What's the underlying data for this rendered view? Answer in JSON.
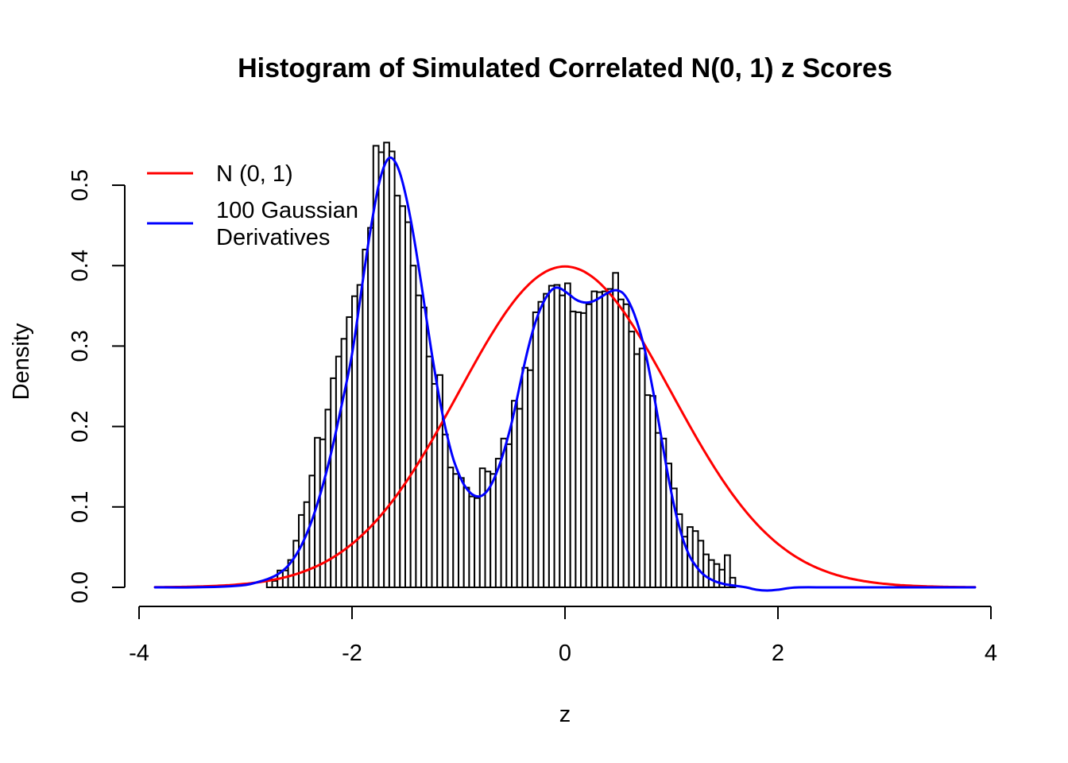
{
  "chart_data": {
    "type": "histogram",
    "title": "Histogram of Simulated Correlated N(0, 1) z Scores",
    "xlabel": "z",
    "ylabel": "Density",
    "xlim": [
      -4,
      4
    ],
    "ylim": [
      0,
      0.55
    ],
    "x_ticks": [
      -4,
      -2,
      0,
      2,
      4
    ],
    "x_tick_labels": [
      "-4",
      "-2",
      "0",
      "2",
      "4"
    ],
    "y_ticks": [
      0.0,
      0.1,
      0.2,
      0.3,
      0.4,
      0.5
    ],
    "y_tick_labels": [
      "0.0",
      "0.1",
      "0.2",
      "0.3",
      "0.4",
      "0.5"
    ],
    "grid": false,
    "background_color": "#FFFFFF",
    "axis_color": "#000000",
    "histogram": {
      "bar_fill": "#FFFFFF",
      "bar_stroke": "#000000",
      "bin_start": -2.8,
      "bin_width": 0.05,
      "densities": [
        0.01,
        0.008,
        0.021,
        0.021,
        0.034,
        0.058,
        0.09,
        0.106,
        0.139,
        0.186,
        0.184,
        0.221,
        0.26,
        0.287,
        0.309,
        0.336,
        0.362,
        0.376,
        0.42,
        0.447,
        0.549,
        0.541,
        0.553,
        0.542,
        0.487,
        0.474,
        0.454,
        0.4,
        0.363,
        0.348,
        0.287,
        0.253,
        0.264,
        0.19,
        0.149,
        0.141,
        0.136,
        0.124,
        0.113,
        0.111,
        0.148,
        0.144,
        0.141,
        0.16,
        0.185,
        0.178,
        0.232,
        0.222,
        0.273,
        0.27,
        0.342,
        0.355,
        0.365,
        0.375,
        0.376,
        0.363,
        0.378,
        0.343,
        0.342,
        0.341,
        0.352,
        0.368,
        0.367,
        0.368,
        0.371,
        0.391,
        0.358,
        0.352,
        0.318,
        0.29,
        0.297,
        0.239,
        0.238,
        0.192,
        0.185,
        0.154,
        0.123,
        0.091,
        0.063,
        0.075,
        0.07,
        0.058,
        0.041,
        0.034,
        0.029,
        0.022,
        0.04,
        0.012
      ]
    },
    "curves": [
      {
        "name": "N (0, 1)",
        "color": "#FF0000",
        "type": "normal_pdf",
        "mean": 0,
        "sd": 1,
        "z_range": [
          -3.85,
          3.85
        ],
        "peak_density": 0.3989
      },
      {
        "name": "100 Gaussian Derivatives",
        "color": "#0000FF",
        "type": "points",
        "points": [
          [
            -3.85,
            0.0
          ],
          [
            -3.5,
            0.0
          ],
          [
            -3.2,
            0.001
          ],
          [
            -3.0,
            0.003
          ],
          [
            -2.9,
            0.006
          ],
          [
            -2.8,
            0.01
          ],
          [
            -2.7,
            0.016
          ],
          [
            -2.6,
            0.027
          ],
          [
            -2.5,
            0.046
          ],
          [
            -2.4,
            0.075
          ],
          [
            -2.3,
            0.115
          ],
          [
            -2.2,
            0.165
          ],
          [
            -2.1,
            0.225
          ],
          [
            -2.0,
            0.29
          ],
          [
            -1.9,
            0.38
          ],
          [
            -1.85,
            0.425
          ],
          [
            -1.8,
            0.465
          ],
          [
            -1.75,
            0.5
          ],
          [
            -1.7,
            0.523
          ],
          [
            -1.65,
            0.534
          ],
          [
            -1.6,
            0.53
          ],
          [
            -1.55,
            0.515
          ],
          [
            -1.5,
            0.49
          ],
          [
            -1.45,
            0.458
          ],
          [
            -1.4,
            0.42
          ],
          [
            -1.35,
            0.378
          ],
          [
            -1.3,
            0.333
          ],
          [
            -1.25,
            0.29
          ],
          [
            -1.2,
            0.25
          ],
          [
            -1.15,
            0.215
          ],
          [
            -1.1,
            0.185
          ],
          [
            -1.05,
            0.16
          ],
          [
            -1.0,
            0.142
          ],
          [
            -0.95,
            0.128
          ],
          [
            -0.9,
            0.119
          ],
          [
            -0.85,
            0.114
          ],
          [
            -0.8,
            0.113
          ],
          [
            -0.75,
            0.117
          ],
          [
            -0.7,
            0.126
          ],
          [
            -0.65,
            0.14
          ],
          [
            -0.6,
            0.158
          ],
          [
            -0.55,
            0.18
          ],
          [
            -0.5,
            0.205
          ],
          [
            -0.45,
            0.235
          ],
          [
            -0.4,
            0.266
          ],
          [
            -0.35,
            0.295
          ],
          [
            -0.3,
            0.32
          ],
          [
            -0.25,
            0.34
          ],
          [
            -0.2,
            0.355
          ],
          [
            -0.15,
            0.366
          ],
          [
            -0.1,
            0.372
          ],
          [
            -0.05,
            0.372
          ],
          [
            0.0,
            0.368
          ],
          [
            0.05,
            0.363
          ],
          [
            0.1,
            0.358
          ],
          [
            0.15,
            0.355
          ],
          [
            0.2,
            0.354
          ],
          [
            0.25,
            0.355
          ],
          [
            0.3,
            0.358
          ],
          [
            0.35,
            0.362
          ],
          [
            0.4,
            0.366
          ],
          [
            0.45,
            0.369
          ],
          [
            0.5,
            0.369
          ],
          [
            0.55,
            0.365
          ],
          [
            0.6,
            0.355
          ],
          [
            0.65,
            0.34
          ],
          [
            0.7,
            0.32
          ],
          [
            0.75,
            0.295
          ],
          [
            0.8,
            0.263
          ],
          [
            0.85,
            0.228
          ],
          [
            0.9,
            0.19
          ],
          [
            0.95,
            0.152
          ],
          [
            1.0,
            0.117
          ],
          [
            1.05,
            0.087
          ],
          [
            1.1,
            0.063
          ],
          [
            1.15,
            0.045
          ],
          [
            1.2,
            0.032
          ],
          [
            1.3,
            0.016
          ],
          [
            1.4,
            0.008
          ],
          [
            1.5,
            0.004
          ],
          [
            1.6,
            0.002
          ],
          [
            1.7,
            0.0
          ],
          [
            1.8,
            -0.003
          ],
          [
            1.9,
            -0.004
          ],
          [
            2.0,
            -0.003
          ],
          [
            2.1,
            -0.001
          ],
          [
            2.2,
            0.0
          ],
          [
            2.5,
            0.0
          ],
          [
            3.0,
            0.0
          ],
          [
            3.5,
            0.0
          ],
          [
            3.85,
            0.0
          ]
        ]
      }
    ],
    "legend": {
      "position": "top-left",
      "items": [
        {
          "label": "N (0, 1)",
          "label_lines": [
            "N (0, 1)"
          ],
          "color": "#FF0000"
        },
        {
          "label": "100 Gaussian Derivatives",
          "label_lines": [
            "100 Gaussian",
            "Derivatives"
          ],
          "color": "#0000FF"
        }
      ]
    }
  }
}
